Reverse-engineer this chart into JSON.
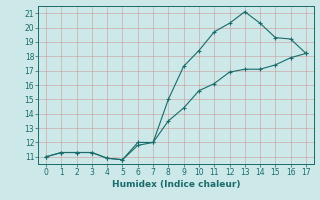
{
  "xlabel": "Humidex (Indice chaleur)",
  "background_color": "#cce8e8",
  "grid_color": "#b0c8c8",
  "line_color": "#1a6b6b",
  "xlim": [
    -0.5,
    17.5
  ],
  "ylim": [
    10.5,
    21.5
  ],
  "xticks": [
    0,
    1,
    2,
    3,
    4,
    5,
    6,
    7,
    8,
    9,
    10,
    11,
    12,
    13,
    14,
    15,
    16,
    17
  ],
  "yticks": [
    11,
    12,
    13,
    14,
    15,
    16,
    17,
    18,
    19,
    20,
    21
  ],
  "line1_x": [
    0,
    1,
    2,
    3,
    4,
    5,
    6,
    7,
    8,
    9,
    10,
    11,
    12,
    13,
    14,
    15,
    16,
    17
  ],
  "line1_y": [
    11,
    11.3,
    11.3,
    11.3,
    10.9,
    10.8,
    12.0,
    12.0,
    15.0,
    17.3,
    18.4,
    19.7,
    20.3,
    21.1,
    20.3,
    19.3,
    19.2,
    18.2
  ],
  "line2_x": [
    0,
    1,
    2,
    3,
    4,
    5,
    6,
    7,
    8,
    9,
    10,
    11,
    12,
    13,
    14,
    15,
    16,
    17
  ],
  "line2_y": [
    11,
    11.3,
    11.3,
    11.3,
    10.9,
    10.8,
    11.8,
    12.0,
    13.5,
    14.4,
    15.6,
    16.1,
    16.9,
    17.1,
    17.1,
    17.4,
    17.9,
    18.2
  ]
}
